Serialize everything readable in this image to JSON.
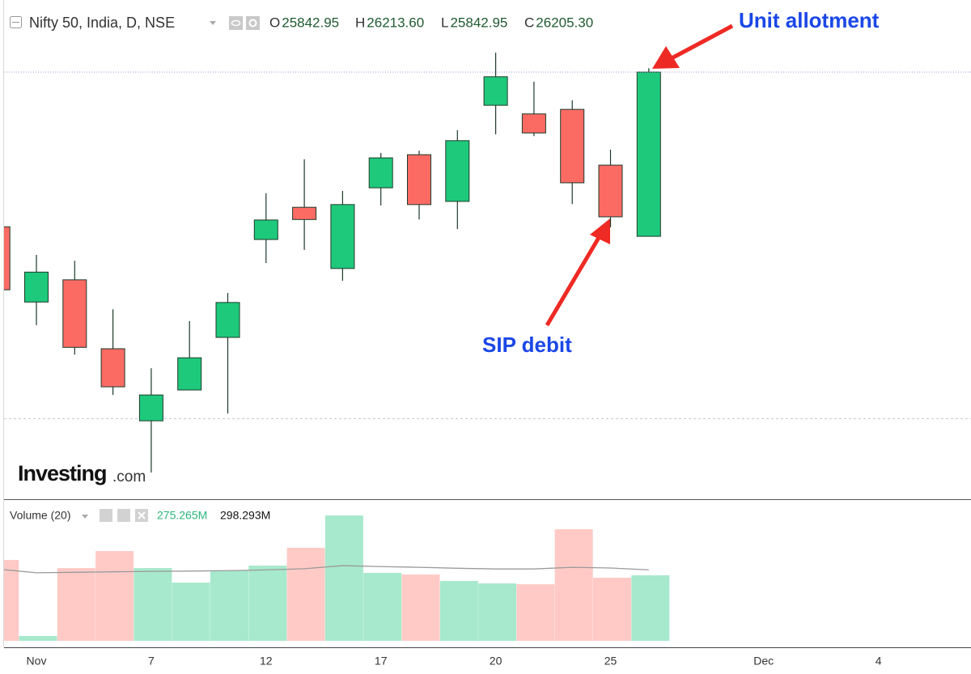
{
  "header": {
    "symbol": "Nifty 50, India, D, NSE",
    "legend": [
      {
        "key": "O",
        "value": "25842.95"
      },
      {
        "key": "H",
        "value": "26213.60"
      },
      {
        "key": "L",
        "value": "25842.95"
      },
      {
        "key": "C",
        "value": "26205.30"
      }
    ],
    "watermark": {
      "brand": "Investing",
      "suffix": ".com"
    }
  },
  "annotations": [
    "Unit allotment",
    "SIP debit"
  ],
  "chart_data": [
    {
      "type": "candlestick",
      "categories": [
        null,
        "Nov",
        null,
        null,
        "7",
        null,
        null,
        "12",
        null,
        null,
        "17",
        null,
        null,
        "20",
        null,
        null,
        "25",
        null,
        null,
        null,
        "Dec",
        null,
        null,
        "4",
        null
      ],
      "open": [
        25864,
        25698,
        25747,
        25595,
        25436,
        25504,
        25620,
        25836,
        25907,
        25772,
        25950,
        26023,
        25920,
        26132,
        26113,
        26123,
        26000,
        25842.95,
        null,
        null,
        null,
        null,
        null,
        null,
        null
      ],
      "high": [
        25864,
        25802,
        25789,
        25682,
        25552,
        25656,
        25718,
        25938,
        26013,
        25943,
        26027,
        26032,
        26077,
        26248,
        26184,
        26143,
        26034,
        26213.6,
        null,
        null,
        null,
        null,
        null,
        null,
        null
      ],
      "low": [
        25725,
        25647,
        25582,
        25493,
        25322,
        25504,
        25452,
        25784,
        25813,
        25745,
        25911,
        25880,
        25859,
        26068,
        26064,
        25914,
        25863,
        25842.95,
        null,
        null,
        null,
        null,
        null,
        null,
        null
      ],
      "close": [
        25725,
        25764,
        25598,
        25511,
        25493,
        25575,
        25697,
        25879,
        25880,
        25913,
        26016,
        25913,
        26054,
        26195,
        26071,
        25961,
        25886,
        26205.3,
        null,
        null,
        null,
        null,
        null,
        null,
        null
      ],
      "up_color": "#1ec97b",
      "down_color": "#fb6b64",
      "ylim": [
        25263,
        26350
      ]
    },
    {
      "type": "bar",
      "title": "Volume (20)",
      "values": [
        339.8,
        20.4,
        305.8,
        377.2,
        305.8,
        244.7,
        295.6,
        316.0,
        390.8,
        526.7,
        285.4,
        278.6,
        251.5,
        241.3,
        237.9,
        468.9,
        265.0,
        275.265,
        null,
        null,
        null,
        null,
        null,
        null,
        null
      ],
      "value_labels": [
        null,
        null,
        null,
        null,
        null,
        null,
        null,
        null,
        null,
        null,
        null,
        null,
        null,
        null,
        null,
        null,
        null,
        "275.265M",
        null,
        null,
        null,
        null,
        null,
        null,
        null
      ],
      "up_color": "#a7e9cc",
      "down_color": "#ffcac6",
      "ma": {
        "values": [
          299,
          286,
          288,
          290,
          292,
          293,
          295,
          298,
          303,
          316,
          312,
          309,
          305,
          302,
          302,
          309,
          306,
          298.293,
          null,
          null,
          null,
          null,
          null,
          null,
          null
        ],
        "value_labels": [
          null,
          null,
          null,
          null,
          null,
          null,
          null,
          null,
          null,
          null,
          null,
          null,
          null,
          null,
          null,
          null,
          null,
          "298.293M",
          null,
          null,
          null,
          null,
          null,
          null,
          null
        ],
        "color": "#9a9a9a"
      },
      "ylim": [
        0,
        578
      ]
    }
  ]
}
